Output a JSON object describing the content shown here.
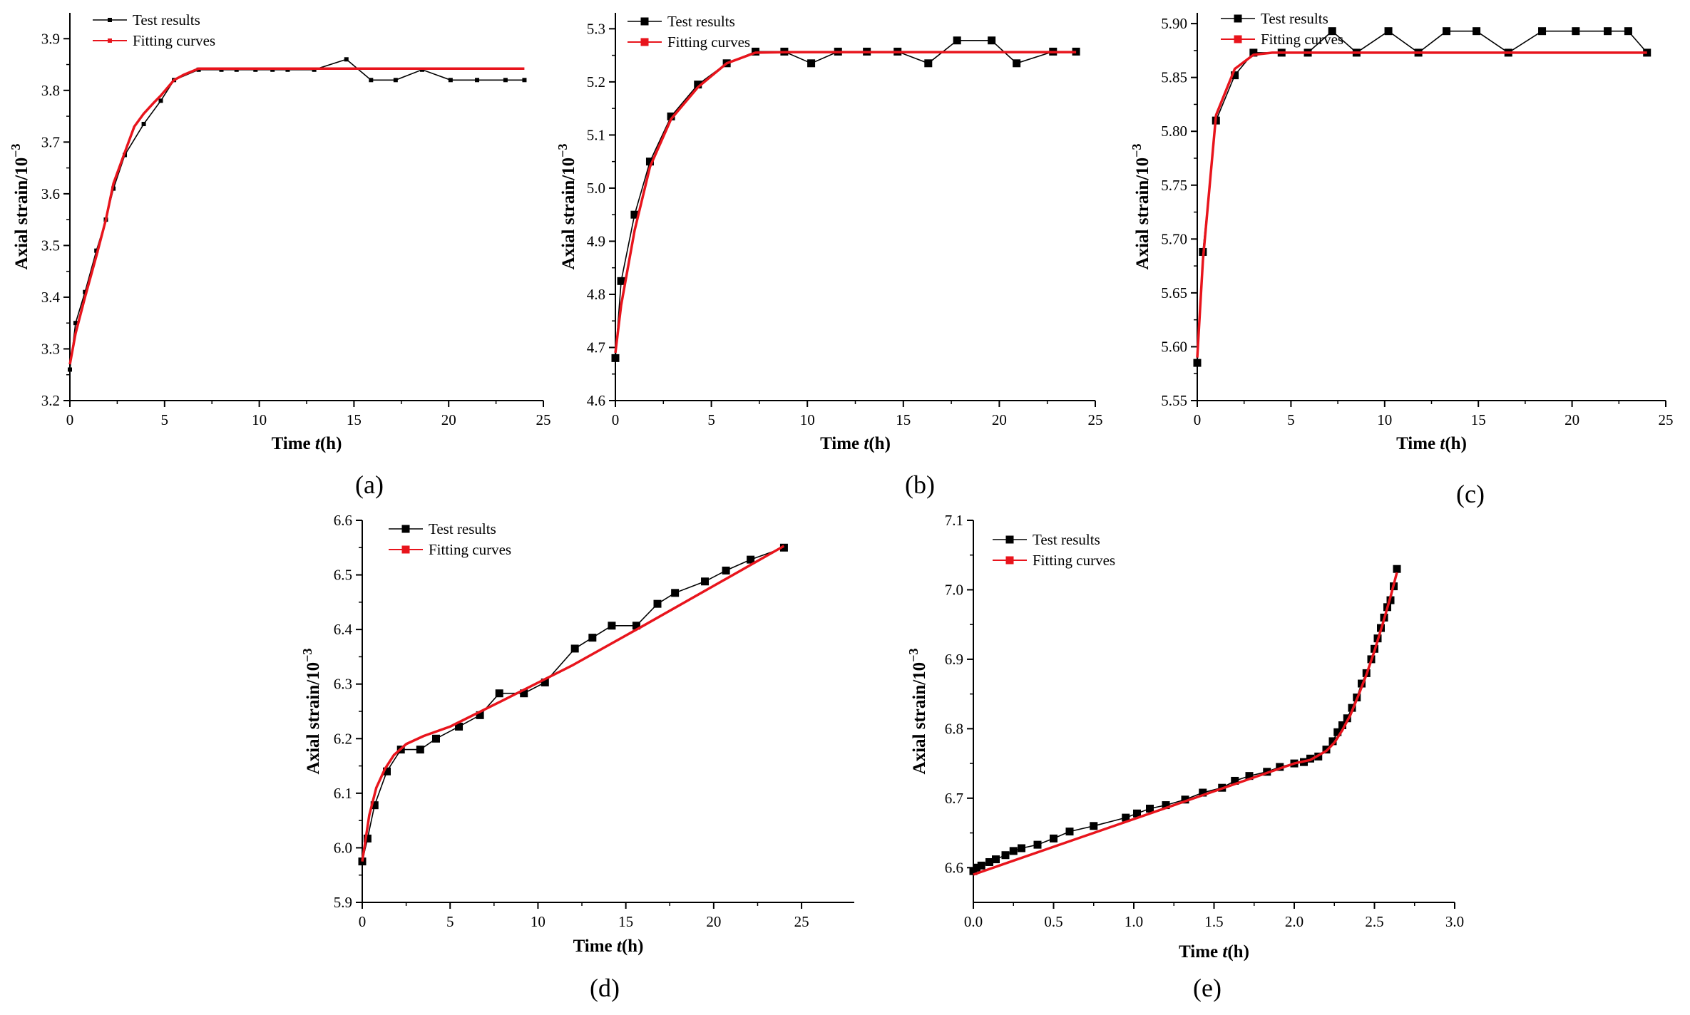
{
  "figure": {
    "description_labels": [
      "(a)",
      "(b)",
      "(c)",
      "(d)",
      "(e)"
    ]
  },
  "chart_data": [
    {
      "panel": "(a)",
      "type": "line",
      "xlabel_prefix": "Time ",
      "xlabel_var": "t",
      "xlabel_suffix": "(h)",
      "ylabel": "Axial strain/10",
      "ylabel_exp": "−3",
      "xlim": [
        0,
        25
      ],
      "ylim": [
        3.2,
        3.95
      ],
      "xticks": [
        0,
        5,
        10,
        15,
        20,
        25
      ],
      "yticks": [
        3.2,
        3.3,
        3.4,
        3.5,
        3.6,
        3.7,
        3.8,
        3.9
      ],
      "ytick_decimals": 1,
      "marker": "small",
      "legend": [
        "Test results",
        "Fitting curves"
      ],
      "series": [
        {
          "name": "Test results",
          "color": "#000000",
          "x": [
            0,
            0.3,
            0.8,
            1.4,
            1.9,
            2.3,
            2.9,
            3.9,
            4.8,
            5.5,
            6.8,
            8.0,
            8.8,
            9.8,
            10.7,
            11.5,
            12.9,
            14.6,
            15.9,
            17.2,
            18.6,
            20.1,
            21.5,
            23.0,
            24.0
          ],
          "y": [
            3.26,
            3.35,
            3.41,
            3.49,
            3.55,
            3.61,
            3.675,
            3.735,
            3.78,
            3.82,
            3.84,
            3.84,
            3.84,
            3.84,
            3.84,
            3.84,
            3.84,
            3.86,
            3.82,
            3.82,
            3.84,
            3.82,
            3.82,
            3.82,
            3.82
          ]
        },
        {
          "name": "Fitting curves",
          "color": "#e8141c",
          "x": [
            0,
            0.3,
            0.8,
            1.4,
            1.9,
            2.3,
            2.9,
            3.4,
            3.9,
            4.4,
            4.8,
            5.5,
            6.0,
            6.8,
            8.0,
            10,
            14,
            18,
            22,
            24
          ],
          "y": [
            3.27,
            3.33,
            3.4,
            3.48,
            3.55,
            3.62,
            3.68,
            3.73,
            3.755,
            3.775,
            3.79,
            3.82,
            3.83,
            3.842,
            3.842,
            3.842,
            3.842,
            3.842,
            3.842,
            3.842
          ]
        }
      ]
    },
    {
      "panel": "(b)",
      "type": "line",
      "xlabel_prefix": "Time ",
      "xlabel_var": "t",
      "xlabel_suffix": "(h)",
      "ylabel": "Axial strain/10",
      "ylabel_exp": "−3",
      "xlim": [
        0,
        25
      ],
      "ylim": [
        4.6,
        5.33
      ],
      "xticks": [
        0,
        5,
        10,
        15,
        20,
        25
      ],
      "yticks": [
        4.6,
        4.7,
        4.8,
        4.9,
        5.0,
        5.1,
        5.2,
        5.3
      ],
      "ytick_decimals": 1,
      "marker": "square",
      "legend": [
        "Test results",
        "Fitting curves"
      ],
      "series": [
        {
          "name": "Test results",
          "color": "#000000",
          "x": [
            0,
            0.3,
            1.0,
            1.8,
            2.9,
            4.3,
            5.8,
            7.3,
            8.8,
            10.2,
            11.6,
            13.1,
            14.7,
            16.3,
            17.8,
            19.6,
            20.9,
            22.8,
            24.0
          ],
          "y": [
            4.68,
            4.825,
            4.95,
            5.05,
            5.135,
            5.195,
            5.235,
            5.257,
            5.257,
            5.235,
            5.257,
            5.257,
            5.257,
            5.235,
            5.278,
            5.278,
            5.235,
            5.257,
            5.257
          ]
        },
        {
          "name": "Fitting curves",
          "color": "#e8141c",
          "x": [
            0,
            0.3,
            1.0,
            1.8,
            2.9,
            4.3,
            5.8,
            7.3,
            9,
            12,
            16,
            20,
            24
          ],
          "y": [
            4.69,
            4.78,
            4.92,
            5.04,
            5.13,
            5.19,
            5.235,
            5.255,
            5.256,
            5.256,
            5.256,
            5.256,
            5.256
          ]
        }
      ]
    },
    {
      "panel": "(c)",
      "type": "line",
      "xlabel_prefix": "Time ",
      "xlabel_var": "t",
      "xlabel_suffix": "(h)",
      "ylabel": "Axial strain/10",
      "ylabel_exp": "−3",
      "xlim": [
        0,
        25
      ],
      "ylim": [
        5.55,
        5.91
      ],
      "xticks": [
        0,
        5,
        10,
        15,
        20,
        25
      ],
      "yticks": [
        5.55,
        5.6,
        5.65,
        5.7,
        5.75,
        5.8,
        5.85,
        5.9
      ],
      "ytick_decimals": 2,
      "marker": "square",
      "legend": [
        "Test results",
        "Fitting curves"
      ],
      "series": [
        {
          "name": "Test results",
          "color": "#000000",
          "x": [
            0,
            0.3,
            1.0,
            2.0,
            3.0,
            4.5,
            5.9,
            7.2,
            8.5,
            10.2,
            11.8,
            13.3,
            14.9,
            16.6,
            18.4,
            20.2,
            21.9,
            23.0,
            24.0
          ],
          "y": [
            5.585,
            5.688,
            5.81,
            5.852,
            5.873,
            5.873,
            5.873,
            5.893,
            5.873,
            5.893,
            5.873,
            5.893,
            5.893,
            5.873,
            5.893,
            5.893,
            5.893,
            5.893,
            5.873
          ]
        },
        {
          "name": "Fitting curves",
          "color": "#e8141c",
          "x": [
            0,
            0.3,
            1.0,
            2.0,
            3.0,
            4.0,
            6,
            10,
            14,
            18,
            22,
            24
          ],
          "y": [
            5.59,
            5.68,
            5.815,
            5.858,
            5.871,
            5.873,
            5.873,
            5.873,
            5.873,
            5.873,
            5.873,
            5.873
          ]
        }
      ]
    },
    {
      "panel": "(d)",
      "type": "line",
      "xlabel_prefix": "Time ",
      "xlabel_var": "t",
      "xlabel_suffix": "(h)",
      "ylabel": "Axial strain/10",
      "ylabel_exp": "−3",
      "xlim": [
        0,
        28
      ],
      "ylim": [
        5.9,
        6.6
      ],
      "xticks": [
        0,
        5,
        10,
        15,
        20,
        25
      ],
      "yticks": [
        5.9,
        6.0,
        6.1,
        6.2,
        6.3,
        6.4,
        6.5,
        6.6
      ],
      "ytick_decimals": 1,
      "marker": "square",
      "legend": [
        "Test results",
        "Fitting curves"
      ],
      "series": [
        {
          "name": "Test results",
          "color": "#000000",
          "x": [
            0,
            0.3,
            0.7,
            1.4,
            2.2,
            3.3,
            4.2,
            5.5,
            6.7,
            7.8,
            9.2,
            10.4,
            12.1,
            13.1,
            14.2,
            15.6,
            16.8,
            17.8,
            19.5,
            20.7,
            22.1,
            24.0
          ],
          "y": [
            5.975,
            6.017,
            6.078,
            6.14,
            6.18,
            6.18,
            6.2,
            6.222,
            6.243,
            6.283,
            6.283,
            6.303,
            6.365,
            6.385,
            6.407,
            6.407,
            6.447,
            6.467,
            6.488,
            6.508,
            6.528,
            6.55
          ]
        },
        {
          "name": "Fitting curves",
          "color": "#e8141c",
          "x": [
            0,
            0.4,
            0.8,
            1.3,
            1.8,
            2.5,
            3.5,
            5,
            8,
            12,
            16,
            20,
            24
          ],
          "y": [
            5.975,
            6.06,
            6.11,
            6.145,
            6.17,
            6.19,
            6.205,
            6.222,
            6.27,
            6.335,
            6.407,
            6.48,
            6.553
          ]
        }
      ]
    },
    {
      "panel": "(e)",
      "type": "line",
      "xlabel_prefix": "Time ",
      "xlabel_var": "t",
      "xlabel_suffix": "(h)",
      "ylabel": "Axial strain/10",
      "ylabel_exp": "−3",
      "xlim": [
        0,
        3.0
      ],
      "ylim": [
        6.55,
        7.1
      ],
      "xticks": [
        0,
        0.5,
        1.0,
        1.5,
        2.0,
        2.5,
        3.0
      ],
      "yticks": [
        6.6,
        6.7,
        6.8,
        6.9,
        7.0,
        7.1
      ],
      "xtick_decimals": 1,
      "ytick_decimals": 1,
      "marker": "square",
      "legend": [
        "Test results",
        "Fitting curves"
      ],
      "series": [
        {
          "name": "Test results",
          "color": "#000000",
          "x": [
            0,
            0.02,
            0.05,
            0.1,
            0.14,
            0.2,
            0.25,
            0.3,
            0.4,
            0.5,
            0.6,
            0.75,
            0.95,
            1.02,
            1.1,
            1.2,
            1.32,
            1.43,
            1.55,
            1.63,
            1.72,
            1.83,
            1.91,
            2.0,
            2.06,
            2.1,
            2.15,
            2.2,
            2.24,
            2.27,
            2.3,
            2.33,
            2.36,
            2.39,
            2.42,
            2.45,
            2.48,
            2.5,
            2.52,
            2.54,
            2.56,
            2.58,
            2.6,
            2.62,
            2.64
          ],
          "y": [
            6.595,
            6.6,
            6.603,
            6.608,
            6.612,
            6.618,
            6.624,
            6.628,
            6.633,
            6.642,
            6.652,
            6.66,
            6.672,
            6.678,
            6.685,
            6.69,
            6.698,
            6.708,
            6.715,
            6.725,
            6.732,
            6.738,
            6.745,
            6.75,
            6.752,
            6.757,
            6.76,
            6.77,
            6.782,
            6.795,
            6.805,
            6.815,
            6.83,
            6.845,
            6.865,
            6.88,
            6.9,
            6.915,
            6.93,
            6.945,
            6.96,
            6.975,
            6.985,
            7.005,
            7.03
          ]
        },
        {
          "name": "Fitting curves",
          "color": "#e8141c",
          "x": [
            0,
            0.5,
            1.0,
            1.5,
            2.0,
            2.1,
            2.2,
            2.25,
            2.3,
            2.35,
            2.4,
            2.45,
            2.5,
            2.55,
            2.6,
            2.64
          ],
          "y": [
            6.59,
            6.63,
            6.67,
            6.71,
            6.75,
            6.755,
            6.768,
            6.78,
            6.798,
            6.82,
            6.848,
            6.878,
            6.912,
            6.95,
            6.99,
            7.025
          ]
        }
      ]
    }
  ]
}
